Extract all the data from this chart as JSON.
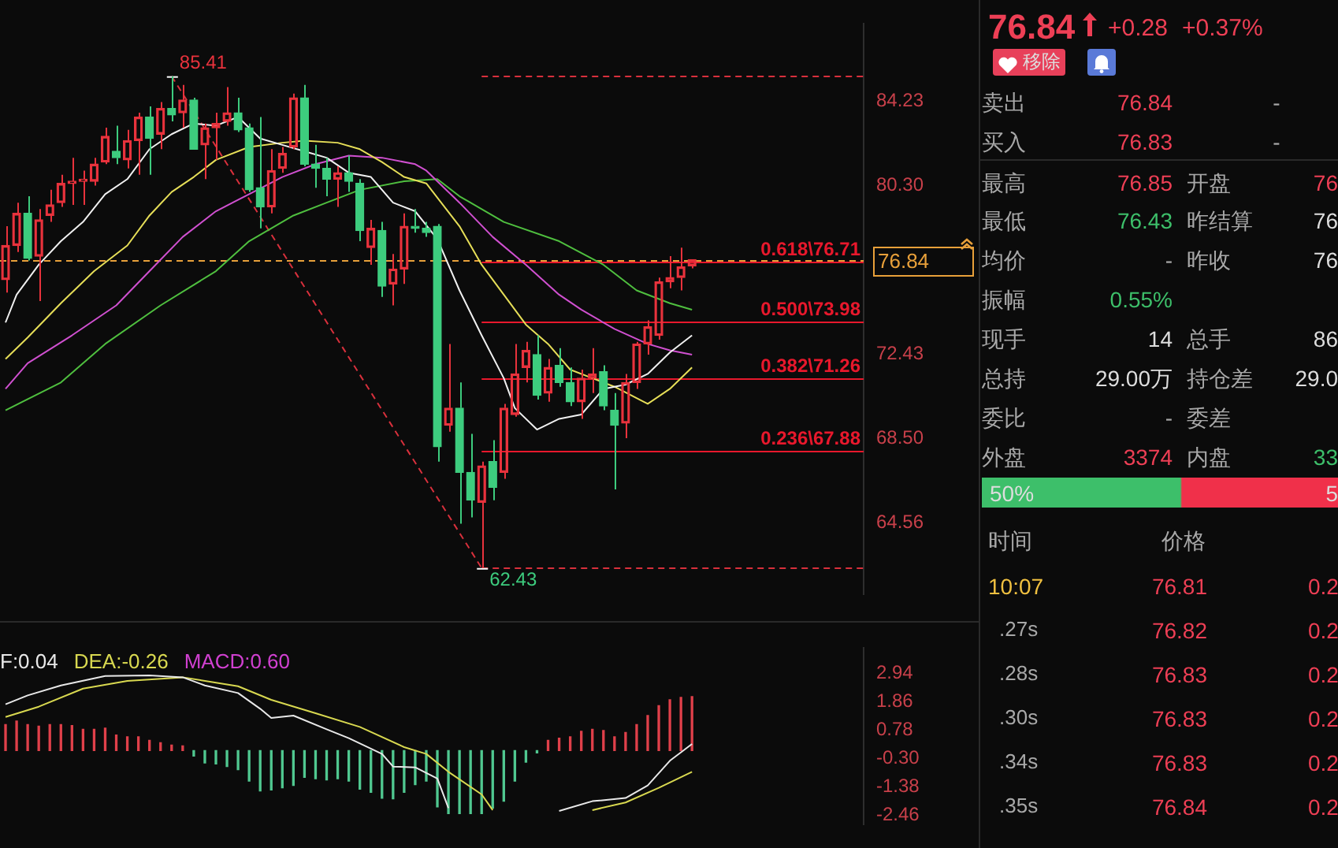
{
  "chart_data": [
    {
      "type": "candlestick",
      "categories": [
        null,
        null,
        null,
        null,
        null,
        null,
        null,
        null,
        null,
        null,
        null,
        null,
        null,
        null,
        null,
        null,
        null,
        null,
        null,
        null,
        null,
        null,
        null,
        null,
        null,
        null,
        null,
        null,
        null,
        null,
        null,
        null,
        null,
        null,
        null,
        null,
        null,
        null,
        null,
        null,
        null,
        null,
        null,
        null,
        null,
        null,
        null,
        null,
        null,
        null,
        null,
        null,
        null,
        null,
        null,
        null,
        null,
        null,
        null,
        null,
        null,
        null,
        null,
        null,
        null,
        null,
        null,
        null,
        null,
        null,
        null,
        null,
        null,
        null,
        null,
        null,
        null,
        null
      ],
      "ohlc": [
        [
          75.9,
          78.4,
          75.3,
          77.5
        ],
        [
          77.5,
          79.5,
          77.2,
          79.0
        ],
        [
          79.0,
          79.8,
          76.8,
          76.9
        ],
        [
          77.0,
          79.2,
          74.9,
          78.7
        ],
        [
          78.9,
          80.1,
          78.6,
          79.4
        ],
        [
          79.5,
          80.8,
          79.3,
          80.4
        ],
        [
          80.4,
          81.6,
          79.4,
          80.5
        ],
        [
          80.5,
          81.0,
          79.4,
          80.6
        ],
        [
          80.5,
          81.6,
          80.3,
          81.3
        ],
        [
          81.4,
          83.0,
          81.3,
          82.6
        ],
        [
          81.9,
          83.1,
          81.3,
          81.6
        ],
        [
          81.5,
          82.9,
          81.1,
          82.4
        ],
        [
          82.4,
          83.7,
          80.8,
          83.5
        ],
        [
          83.5,
          84.0,
          80.8,
          82.5
        ],
        [
          82.7,
          84.2,
          82.0,
          83.9
        ],
        [
          83.9,
          85.41,
          83.3,
          83.6
        ],
        [
          83.7,
          85.0,
          83.0,
          84.3
        ],
        [
          84.3,
          84.4,
          82.0,
          82.0
        ],
        [
          82.2,
          83.2,
          80.6,
          83.0
        ],
        [
          83.0,
          83.7,
          81.5,
          83.2
        ],
        [
          83.3,
          84.9,
          83.1,
          83.7
        ],
        [
          83.7,
          84.4,
          82.8,
          82.9
        ],
        [
          83.0,
          83.2,
          80.0,
          80.1
        ],
        [
          80.2,
          83.5,
          78.3,
          79.3
        ],
        [
          79.3,
          82.0,
          79.0,
          81.0
        ],
        [
          81.1,
          82.1,
          80.9,
          81.8
        ],
        [
          82.1,
          84.6,
          82.0,
          84.4
        ],
        [
          84.4,
          85.0,
          81.2,
          81.3
        ],
        [
          81.3,
          82.2,
          80.2,
          81.1
        ],
        [
          81.1,
          81.6,
          79.8,
          80.6
        ],
        [
          80.6,
          81.2,
          79.3,
          80.9
        ],
        [
          80.9,
          81.7,
          80.0,
          80.5
        ],
        [
          80.4,
          80.6,
          77.7,
          78.2
        ],
        [
          77.4,
          78.7,
          76.6,
          78.3
        ],
        [
          78.2,
          78.6,
          75.1,
          75.6
        ],
        [
          75.7,
          77.1,
          74.7,
          76.4
        ],
        [
          76.4,
          79.0,
          75.7,
          78.4
        ],
        [
          78.4,
          79.2,
          78.1,
          78.3
        ],
        [
          78.3,
          78.6,
          77.9,
          78.1
        ],
        [
          78.4,
          78.5,
          67.4,
          68.1
        ],
        [
          69.1,
          72.9,
          68.8,
          69.9
        ],
        [
          69.9,
          71.1,
          64.5,
          66.9
        ],
        [
          66.9,
          68.7,
          64.8,
          65.6
        ],
        [
          65.5,
          67.4,
          62.43,
          67.2
        ],
        [
          67.4,
          68.4,
          65.6,
          66.2
        ],
        [
          66.9,
          70.1,
          66.6,
          69.9
        ],
        [
          69.6,
          72.9,
          69.5,
          71.5
        ],
        [
          71.8,
          73.0,
          71.1,
          72.6
        ],
        [
          72.4,
          73.3,
          70.3,
          70.5
        ],
        [
          70.6,
          72.2,
          70.2,
          71.8
        ],
        [
          71.9,
          72.7,
          70.9,
          71.1
        ],
        [
          71.1,
          71.8,
          70.0,
          70.2
        ],
        [
          70.2,
          71.7,
          69.4,
          71.3
        ],
        [
          71.3,
          72.7,
          70.6,
          71.5
        ],
        [
          71.6,
          71.9,
          69.8,
          70.0
        ],
        [
          69.8,
          70.6,
          66.1,
          69.1
        ],
        [
          69.2,
          71.5,
          68.5,
          71.1
        ],
        [
          71.1,
          73.0,
          70.8,
          72.9
        ],
        [
          72.9,
          74.0,
          72.4,
          73.7
        ],
        [
          73.3,
          76.0,
          73.1,
          75.8
        ],
        [
          75.8,
          77.0,
          75.5,
          76.0
        ],
        [
          76.0,
          77.4,
          75.4,
          76.5
        ],
        [
          76.55,
          76.85,
          76.43,
          76.84
        ],
        null,
        null,
        null,
        null,
        null,
        null,
        null,
        null,
        null,
        null,
        null,
        null,
        null,
        null,
        null
      ],
      "series": [
        {
          "type": "line",
          "color": "#f0f0f0",
          "values": [
            73.9,
            75.2,
            null,
            76.6,
            null,
            77.7,
            null,
            78.6,
            null,
            79.9,
            null,
            80.6,
            null,
            82.0,
            null,
            82.7,
            null,
            83.2,
            null,
            83.1,
            null,
            83.5,
            null,
            82.5,
            null,
            82.2,
            null,
            81.9,
            null,
            81.6,
            null,
            80.9,
            null,
            80.7,
            null,
            79.5,
            null,
            79.1,
            null,
            77.8,
            null,
            75.4,
            null,
            73.3,
            null,
            71.3,
            69.9,
            null,
            68.9,
            null,
            69.4,
            null,
            69.6,
            null,
            70.8,
            null,
            71.0,
            null,
            71.5,
            null,
            72.5,
            null,
            73.3,
            null,
            null,
            null,
            null,
            null,
            null,
            null,
            null,
            null,
            null,
            null,
            null,
            null,
            null,
            null
          ]
        },
        {
          "type": "line",
          "color": "#e6de58",
          "values": [
            72.2,
            null,
            73.2,
            null,
            null,
            74.8,
            null,
            null,
            76.3,
            null,
            null,
            77.5,
            null,
            78.9,
            null,
            80.0,
            null,
            80.7,
            null,
            81.5,
            null,
            null,
            82.1,
            null,
            null,
            82.3,
            null,
            82.4,
            null,
            null,
            82.3,
            null,
            82.0,
            null,
            81.4,
            null,
            80.7,
            null,
            80.4,
            null,
            null,
            78.4,
            null,
            76.6,
            null,
            75.2,
            null,
            73.8,
            null,
            72.9,
            null,
            71.7,
            null,
            71.3,
            null,
            70.9,
            null,
            null,
            70.1,
            null,
            70.8,
            null,
            71.8,
            null,
            null,
            null,
            null,
            null,
            null,
            null,
            null,
            null,
            null,
            null,
            null,
            null,
            null,
            null
          ]
        },
        {
          "type": "line",
          "color": "#d050d0",
          "values": [
            70.8,
            null,
            72.0,
            null,
            null,
            null,
            73.3,
            null,
            null,
            null,
            74.7,
            null,
            null,
            76.3,
            null,
            null,
            77.9,
            null,
            null,
            79.1,
            null,
            null,
            79.9,
            null,
            null,
            80.7,
            null,
            null,
            81.3,
            null,
            null,
            81.7,
            null,
            null,
            81.6,
            null,
            null,
            81.3,
            81.0,
            null,
            null,
            79.5,
            null,
            null,
            77.9,
            null,
            null,
            76.6,
            null,
            null,
            75.2,
            null,
            74.5,
            null,
            null,
            73.6,
            null,
            null,
            72.9,
            null,
            72.6,
            null,
            72.4,
            null,
            null,
            null,
            null,
            null,
            null,
            null,
            null,
            null,
            null,
            null,
            null,
            null,
            null,
            null
          ]
        },
        {
          "type": "line",
          "color": "#4fbf3f",
          "values": [
            69.8,
            null,
            null,
            null,
            null,
            71.1,
            null,
            null,
            null,
            72.9,
            null,
            null,
            null,
            null,
            74.7,
            null,
            null,
            null,
            null,
            76.3,
            null,
            null,
            77.7,
            null,
            null,
            null,
            78.9,
            null,
            null,
            79.5,
            null,
            null,
            80.1,
            null,
            null,
            null,
            80.5,
            null,
            null,
            80.6,
            null,
            79.8,
            null,
            null,
            null,
            78.6,
            null,
            null,
            null,
            null,
            77.7,
            null,
            null,
            null,
            76.6,
            null,
            null,
            75.4,
            null,
            null,
            74.8,
            null,
            74.5,
            null,
            null,
            null,
            null,
            null,
            null,
            null,
            null,
            null,
            null,
            null,
            null,
            null,
            null,
            null
          ]
        },
        {
          "type": "line",
          "color": "#d8303c",
          "line_style": "dashed",
          "values": [
            null,
            null,
            null,
            null,
            null,
            null,
            null,
            null,
            null,
            null,
            null,
            null,
            null,
            null,
            null,
            85.41,
            null,
            null,
            null,
            null,
            null,
            null,
            null,
            null,
            null,
            null,
            null,
            null,
            null,
            null,
            null,
            null,
            null,
            null,
            null,
            null,
            null,
            null,
            null,
            null,
            null,
            null,
            null,
            62.43,
            null,
            null,
            null,
            null,
            null,
            null,
            null,
            null,
            null,
            null,
            null,
            null,
            null,
            null,
            null,
            null,
            null,
            null,
            null,
            null,
            null,
            null,
            null,
            null,
            null,
            null,
            null,
            null,
            null,
            null,
            null,
            null,
            null,
            null
          ]
        }
      ],
      "ylim": [
        61.22,
        87.85
      ],
      "yticks": [
        64.56,
        {
          "value": 68.5,
          "label": "68.50"
        },
        72.43,
        {
          "value": 80.3,
          "label": "80.30"
        },
        84.23
      ],
      "ref_lines": [
        {
          "axis": "y",
          "value": 85.41,
          "label": null,
          "color": "#d8303c",
          "line_style": "dashed"
        },
        {
          "axis": "y",
          "value": 76.71,
          "label": "0.618\\76.71",
          "color": "#e8182c",
          "line_style": "solid"
        },
        {
          "axis": "y",
          "value": 73.98,
          "label": "0.500\\73.98",
          "color": "#e8182c",
          "line_style": "solid"
        },
        {
          "axis": "y",
          "value": 71.26,
          "label": "0.382\\71.26",
          "color": "#e8182c",
          "line_style": "solid"
        },
        {
          "axis": "y",
          "value": 67.88,
          "label": "0.236\\67.88",
          "color": "#e8182c",
          "line_style": "solid"
        },
        {
          "axis": "y",
          "value": 62.43,
          "label": null,
          "color": "#d8303c",
          "line_style": "dashed"
        },
        {
          "axis": "y",
          "value": 76.84,
          "label": "76.84",
          "color": "#e8a03a",
          "line_style": "dashed"
        }
      ],
      "annotations": [
        "85.41",
        "62.43"
      ],
      "grid": false,
      "legend": false,
      "tick_labels": "y",
      "marker": "none"
    },
    {
      "type": "bar",
      "categories": [
        null,
        null,
        null,
        null,
        null,
        null,
        null,
        null,
        null,
        null,
        null,
        null,
        null,
        null,
        null,
        null,
        null,
        null,
        null,
        null,
        null,
        null,
        null,
        null,
        null,
        null,
        null,
        null,
        null,
        null,
        null,
        null,
        null,
        null,
        null,
        null,
        null,
        null,
        null,
        null,
        null,
        null,
        null,
        null,
        null,
        null,
        null,
        null,
        null,
        null,
        null,
        null,
        null,
        null,
        null,
        null,
        null,
        null,
        null,
        null,
        null,
        null,
        null,
        null,
        null,
        null,
        null,
        null,
        null,
        null,
        null,
        null,
        null,
        null,
        null,
        null,
        null,
        null
      ],
      "series": [
        {
          "type": "line",
          "name": "F:0.04",
          "color": "#e8e8e8",
          "values": [
            1.76,
            null,
            2.1,
            null,
            null,
            2.48,
            null,
            null,
            null,
            2.84,
            null,
            null,
            null,
            2.86,
            null,
            null,
            2.79,
            null,
            2.48,
            null,
            null,
            2.19,
            null,
            1.59,
            1.24,
            null,
            1.33,
            null,
            null,
            0.81,
            null,
            0.47,
            null,
            null,
            -0.13,
            -0.61,
            null,
            -0.64,
            null,
            -1.07,
            -2.19,
            null,
            null,
            null,
            null,
            null,
            null,
            null,
            null,
            null,
            -2.3,
            null,
            null,
            -1.93,
            null,
            null,
            -1.81,
            null,
            -1.33,
            null,
            -0.39,
            null,
            0.25,
            null,
            null,
            null,
            null,
            null,
            null,
            null,
            null,
            null,
            null,
            null,
            null,
            null,
            null,
            null
          ]
        },
        {
          "type": "line",
          "name": "DEA:-0.26",
          "color": "#d8d850",
          "values": [
            1.28,
            null,
            null,
            1.67,
            null,
            null,
            null,
            2.36,
            null,
            null,
            null,
            2.65,
            null,
            null,
            null,
            null,
            2.79,
            null,
            null,
            null,
            null,
            2.45,
            null,
            null,
            1.93,
            null,
            null,
            null,
            1.42,
            null,
            null,
            null,
            0.9,
            null,
            null,
            null,
            0.13,
            null,
            -0.13,
            null,
            -0.81,
            null,
            null,
            -1.67,
            -2.27,
            null,
            null,
            null,
            null,
            null,
            null,
            null,
            null,
            -2.27,
            null,
            null,
            -1.98,
            null,
            null,
            -1.42,
            null,
            null,
            -0.81,
            null,
            null,
            null,
            null,
            null,
            null,
            null,
            null,
            null,
            null,
            null,
            null,
            null,
            null,
            null
          ]
        },
        {
          "type": "bar",
          "colors": [
            "#e0404a",
            "#e0404a",
            "#e0404a",
            "#e0404a",
            "#e0404a",
            "#e0404a",
            "#e0404a",
            "#e0404a",
            "#e0404a",
            "#e0404a",
            "#e0404a",
            "#e0404a",
            "#e0404a",
            "#e0404a",
            "#e0404a",
            "#e0404a",
            "#e0404a",
            "#50c890",
            "#50c890",
            "#50c890",
            "#50c890",
            "#50c890",
            "#50c890",
            "#50c890",
            "#50c890",
            "#50c890",
            "#50c890",
            "#50c890",
            "#50c890",
            "#50c890",
            "#50c890",
            "#50c890",
            "#50c890",
            "#50c890",
            "#50c890",
            "#50c890",
            "#50c890",
            "#50c890",
            "#50c890",
            "#50c890",
            "#50c890",
            "#50c890",
            "#50c890",
            "#50c890",
            "#50c890",
            "#50c890",
            "#50c890",
            "#50c890",
            "#50c890",
            "#e0404a",
            "#e0404a",
            "#e0404a",
            "#e0404a",
            "#e0404a",
            "#e0404a",
            "#e0404a",
            "#e0404a",
            "#e0404a",
            "#e0404a",
            "#e0404a",
            "#e0404a",
            "#e0404a",
            "#e0404a",
            null,
            null,
            null,
            null,
            null,
            null,
            null,
            null,
            null,
            null,
            null,
            null,
            null,
            null,
            null
          ],
          "values": [
            0.99,
            1.12,
            0.99,
            0.93,
            0.99,
            0.99,
            0.95,
            0.81,
            0.81,
            0.85,
            0.59,
            0.52,
            0.52,
            0.39,
            0.3,
            0.21,
            0.18,
            -0.21,
            -0.47,
            -0.51,
            -0.61,
            -0.73,
            -1.16,
            -1.54,
            -1.5,
            -1.42,
            -1.33,
            -1.02,
            -1.07,
            -1.12,
            -1.07,
            -1.16,
            -1.47,
            -1.59,
            -1.82,
            -1.84,
            -1.59,
            -1.3,
            -1.16,
            -2.15,
            -2.4,
            -2.4,
            -2.4,
            -2.4,
            -2.19,
            -1.93,
            -1.16,
            -0.44,
            -0.09,
            0.39,
            0.47,
            0.52,
            0.73,
            0.81,
            0.76,
            0.52,
            0.69,
            0.99,
            1.33,
            1.71,
            1.93,
            2.02,
            2.05,
            null,
            null,
            null,
            null,
            null,
            null,
            null,
            null,
            null,
            null,
            null,
            null,
            null,
            null,
            null
          ]
        }
      ],
      "ylim": [
        -2.8,
        3.9
      ],
      "yticks": [
        2.94,
        1.86,
        0.78,
        {
          "value": -0.3,
          "label": "-0.30"
        },
        -1.38,
        -2.46
      ],
      "annotations": [
        "MACD:0.60"
      ],
      "legend": "top left",
      "tick_labels": "y",
      "marker": "none"
    },
    {
      "type": "other",
      "annotations": [
        "76.84",
        "+0.28",
        "+0.37%",
        "移除",
        "卖出",
        "76.84",
        "-",
        "买入",
        "76.83",
        "-",
        "最高",
        "76.85",
        "开盘",
        "76",
        "最低",
        "76.43",
        "昨结算",
        "76",
        "均价",
        "-",
        "昨收",
        "76",
        "振幅",
        "0.55%",
        "现手",
        "14",
        "总手",
        "86",
        "总持",
        "29.00万",
        "持仓差",
        "29.0",
        "委比",
        "-",
        "委差",
        "外盘",
        "3374",
        "内盘",
        "33",
        "50%",
        "5",
        "时间",
        "价格",
        "10:07",
        "76.81",
        "0.2",
        ".27s",
        "76.82",
        "0.2",
        ".28s",
        "76.83",
        "0.2",
        ".30s",
        "76.83",
        "0.2",
        ".34s",
        "76.83",
        "0.2",
        ".35s",
        "76.84",
        "0.2"
      ]
    }
  ]
}
